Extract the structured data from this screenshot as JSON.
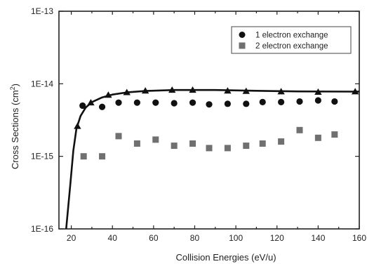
{
  "chart_data": {
    "type": "scatter",
    "x_label": "Collision Energies (eV/u)",
    "y_label_main": "Cross Sections (cm",
    "y_label_sup": "2",
    "y_label_tail": ")",
    "xlim": [
      14,
      160
    ],
    "ylim": [
      1e-16,
      1e-13
    ],
    "y_scale": "log",
    "x_ticks": [
      20,
      40,
      60,
      80,
      100,
      120,
      140,
      160
    ],
    "x_tick_labels": [
      "20",
      "40",
      "60",
      "80",
      "100",
      "120",
      "140",
      "160"
    ],
    "y_ticks": [
      1e-16,
      1e-15,
      1e-14,
      1e-13
    ],
    "y_tick_labels": [
      "1E-16",
      "1E-15",
      "1E-14",
      "1E-13"
    ],
    "legend_position": "top-right",
    "series": [
      {
        "name": "1 electron exchange",
        "marker": "circle",
        "color": "#111111",
        "points": [
          [
            25.5,
            5e-15
          ],
          [
            35,
            4.8e-15
          ],
          [
            43,
            5.5e-15
          ],
          [
            52,
            5.5e-15
          ],
          [
            61,
            5.5e-15
          ],
          [
            70,
            5.4e-15
          ],
          [
            79,
            5.5e-15
          ],
          [
            87,
            5.2e-15
          ],
          [
            96,
            5.3e-15
          ],
          [
            105,
            5.3e-15
          ],
          [
            113,
            5.6e-15
          ],
          [
            122,
            5.6e-15
          ],
          [
            131,
            5.7e-15
          ],
          [
            140,
            5.9e-15
          ],
          [
            148,
            5.7e-15
          ]
        ]
      },
      {
        "name": "2 electron exchange",
        "marker": "square",
        "color": "#707070",
        "points": [
          [
            26,
            1e-15
          ],
          [
            35,
            1e-15
          ],
          [
            43,
            1.9e-15
          ],
          [
            52,
            1.5e-15
          ],
          [
            61,
            1.7e-15
          ],
          [
            70,
            1.4e-15
          ],
          [
            79,
            1.5e-15
          ],
          [
            87,
            1.3e-15
          ],
          [
            96,
            1.3e-15
          ],
          [
            105,
            1.4e-15
          ],
          [
            113,
            1.5e-15
          ],
          [
            122,
            1.6e-15
          ],
          [
            131,
            2.3e-15
          ],
          [
            140,
            1.8e-15
          ],
          [
            148,
            2e-15
          ]
        ]
      },
      {
        "marker": "triangle",
        "color": "#111111",
        "points": [
          [
            23,
            2.6e-15
          ],
          [
            29.5,
            5.5e-15
          ],
          [
            38,
            7e-15
          ],
          [
            47,
            7.6e-15
          ],
          [
            56,
            8e-15
          ],
          [
            69,
            8.2e-15
          ],
          [
            79,
            8.2e-15
          ],
          [
            96,
            8e-15
          ],
          [
            105,
            7.9e-15
          ],
          [
            122,
            7.8e-15
          ],
          [
            140,
            7.7e-15
          ],
          [
            158,
            7.8e-15
          ]
        ]
      }
    ],
    "curve": {
      "color": "#111111",
      "points": [
        [
          17.5,
          1e-16
        ],
        [
          19.5,
          4e-16
        ],
        [
          21,
          1.2e-15
        ],
        [
          22.5,
          2.4e-15
        ],
        [
          24.5,
          3.6e-15
        ],
        [
          27,
          4.7e-15
        ],
        [
          30,
          5.6e-15
        ],
        [
          35,
          6.5e-15
        ],
        [
          40,
          7.1e-15
        ],
        [
          47,
          7.6e-15
        ],
        [
          56,
          7.95e-15
        ],
        [
          70,
          8.2e-15
        ],
        [
          90,
          8.2e-15
        ],
        [
          110,
          8e-15
        ],
        [
          130,
          7.85e-15
        ],
        [
          160,
          7.8e-15
        ]
      ]
    }
  }
}
